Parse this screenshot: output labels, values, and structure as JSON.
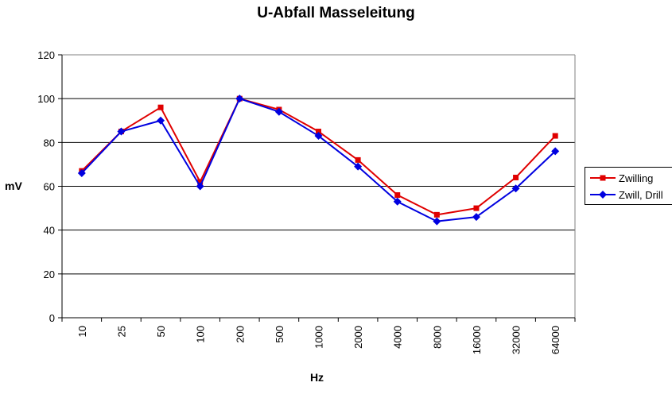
{
  "chart_data": {
    "type": "line",
    "title": "U-Abfall Masseleitung",
    "xlabel": "Hz",
    "ylabel": "mV",
    "categories": [
      "10",
      "25",
      "50",
      "100",
      "200",
      "500",
      "1000",
      "2000",
      "4000",
      "8000",
      "16000",
      "32000",
      "64000"
    ],
    "ylim": [
      0,
      120
    ],
    "yticks": [
      "0",
      "20",
      "40",
      "60",
      "80",
      "100",
      "120"
    ],
    "grid": true,
    "legend_position": "right",
    "series": [
      {
        "name": "Zwilling",
        "color": "#e00000",
        "marker": "square",
        "values": [
          67,
          85,
          96,
          62,
          100,
          95,
          85,
          72,
          56,
          47,
          50,
          64,
          83
        ]
      },
      {
        "name": "Zwill, Drill",
        "color": "#0000e0",
        "marker": "diamond",
        "values": [
          66,
          85,
          90,
          60,
          100,
          94,
          83,
          69,
          53,
          44,
          46,
          59,
          76
        ]
      }
    ]
  }
}
